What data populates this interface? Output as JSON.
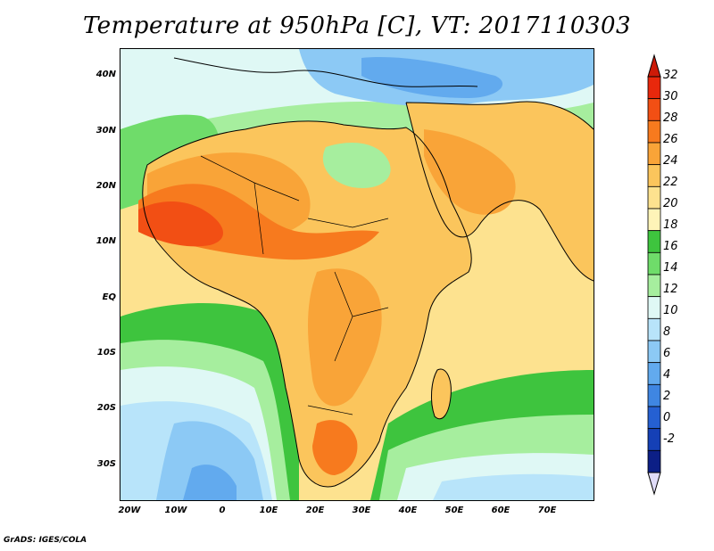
{
  "title": "Temperature at 950hPa [C], VT: 2017110303",
  "credit": "GrADS: IGES/COLA",
  "axes": {
    "lat_labels": [
      "40N",
      "30N",
      "20N",
      "10N",
      "EQ",
      "10S",
      "20S",
      "30S"
    ],
    "lon_labels": [
      "20W",
      "10W",
      "0",
      "10E",
      "20E",
      "30E",
      "40E",
      "50E",
      "60E",
      "70E"
    ]
  },
  "colorbar": {
    "labels": [
      "32",
      "30",
      "28",
      "26",
      "24",
      "22",
      "20",
      "18",
      "16",
      "14",
      "12",
      "10",
      "8",
      "6",
      "4",
      "2",
      "0",
      "-2"
    ],
    "colors": [
      "#e8280c",
      "#f24f14",
      "#f77a1e",
      "#f9a438",
      "#fbc55c",
      "#fde28f",
      "#fef4b8",
      "#3ec43e",
      "#6fdc6a",
      "#a6ee9e",
      "#dff8f5",
      "#b8e4fa",
      "#8cc9f5",
      "#62aaee",
      "#3f86e2",
      "#2560d2",
      "#1540b6",
      "#0c1f86"
    ],
    "top_arrow_color": "#cc1a08",
    "bottom_arrow_color": "#e0dcf8"
  },
  "map_colors": {
    "ocean_warm": "#fde28f",
    "ocean_cool": "#fef4b8",
    "green": "#3ec43e",
    "light_green": "#6fdc6a",
    "pale_green": "#a6ee9e",
    "pale_cyan": "#dff8f5",
    "light_blue": "#b8e4fa",
    "blue": "#8cc9f5",
    "mid_blue": "#62aaee",
    "land_warm": "#fbc55c",
    "land_hot": "#f9a438",
    "land_hotter": "#f77a1e",
    "land_hottest": "#f24f14",
    "coast": "#000000"
  }
}
